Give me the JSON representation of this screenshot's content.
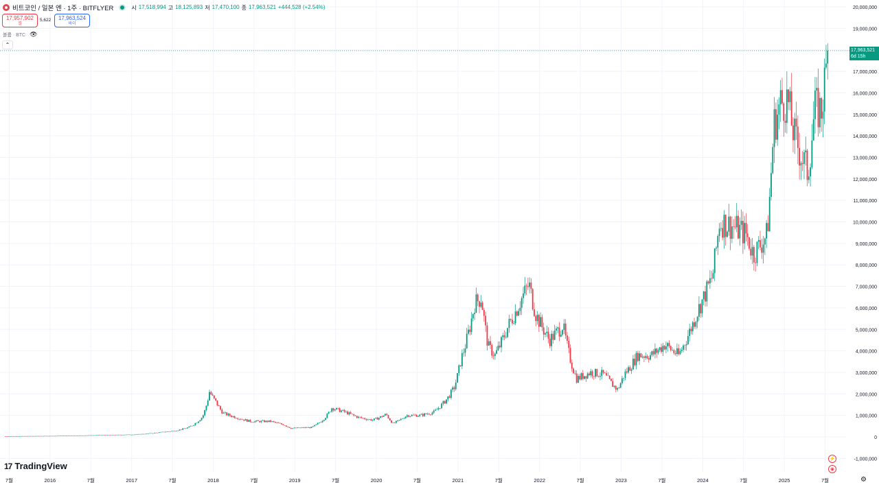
{
  "header": {
    "title": "비트코인 / 일본 엔 · 1주 · BITFLYER",
    "ohlc": [
      {
        "k": "시",
        "v": "17,518,994"
      },
      {
        "k": "고",
        "v": "18,125,893"
      },
      {
        "k": "저",
        "v": "17,470,100"
      },
      {
        "k": "종",
        "v": "17,963,521"
      },
      {
        "k": "",
        "v": "+444,528 (+2.54%)"
      }
    ]
  },
  "trade": {
    "sell_price": "17,957,902",
    "sell_label": "셀",
    "spread": "5,622",
    "buy_price": "17,963,524",
    "buy_label": "바이"
  },
  "volume_label": "볼륨 · BTC",
  "price_tag": {
    "price": "17,963,521",
    "countdown": "6d 15h"
  },
  "brand": "TradingView",
  "colors": {
    "up": "#089981",
    "down": "#f23645",
    "grid": "#f0f3fa",
    "axis_text": "#131722"
  },
  "chart_data": {
    "type": "candlestick",
    "title": "비트코인 / 일본 엔 · 1주 · BITFLYER",
    "ylim": [
      -1300000,
      20200000
    ],
    "y_ticks": [
      -1000000,
      0,
      1000000,
      2000000,
      3000000,
      4000000,
      5000000,
      6000000,
      7000000,
      8000000,
      9000000,
      10000000,
      11000000,
      12000000,
      13000000,
      14000000,
      15000000,
      16000000,
      17000000,
      18000000,
      19000000,
      20000000
    ],
    "x_ticks": [
      "7월",
      "2016",
      "7월",
      "2017",
      "7월",
      "2018",
      "7월",
      "2019",
      "7월",
      "2020",
      "7월",
      "2021",
      "7월",
      "2022",
      "7월",
      "2023",
      "7월",
      "2024",
      "7월",
      "2025",
      "7월"
    ],
    "x_range": [
      "2015-06",
      "2025-07"
    ],
    "last_price": 17963521,
    "price_path": [
      [
        "2015-06",
        30000
      ],
      [
        "2016-01",
        45000
      ],
      [
        "2016-07",
        75000
      ],
      [
        "2017-01",
        110000
      ],
      [
        "2017-05",
        220000
      ],
      [
        "2017-07",
        290000
      ],
      [
        "2017-09",
        450000
      ],
      [
        "2017-11",
        950000
      ],
      [
        "2017-12",
        2100000
      ],
      [
        "2018-01",
        1600000
      ],
      [
        "2018-02",
        1100000
      ],
      [
        "2018-04",
        900000
      ],
      [
        "2018-06",
        720000
      ],
      [
        "2018-09",
        720000
      ],
      [
        "2018-11",
        560000
      ],
      [
        "2018-12",
        400000
      ],
      [
        "2019-03",
        440000
      ],
      [
        "2019-05",
        900000
      ],
      [
        "2019-06",
        1350000
      ],
      [
        "2019-08",
        1150000
      ],
      [
        "2019-10",
        900000
      ],
      [
        "2019-12",
        780000
      ],
      [
        "2020-02",
        1050000
      ],
      [
        "2020-03",
        620000
      ],
      [
        "2020-05",
        1000000
      ],
      [
        "2020-07",
        1000000
      ],
      [
        "2020-09",
        1150000
      ],
      [
        "2020-11",
        1800000
      ],
      [
        "2020-12",
        2300000
      ],
      [
        "2021-01",
        3600000
      ],
      [
        "2021-03",
        6200000
      ],
      [
        "2021-04",
        6500000
      ],
      [
        "2021-05",
        4200000
      ],
      [
        "2021-06",
        3800000
      ],
      [
        "2021-08",
        5200000
      ],
      [
        "2021-10",
        6500000
      ],
      [
        "2021-11",
        7100000
      ],
      [
        "2021-12",
        5700000
      ],
      [
        "2022-02",
        4500000
      ],
      [
        "2022-04",
        5200000
      ],
      [
        "2022-05",
        3700000
      ],
      [
        "2022-06",
        2700000
      ],
      [
        "2022-08",
        3000000
      ],
      [
        "2022-10",
        2900000
      ],
      [
        "2022-12",
        2200000
      ],
      [
        "2023-01",
        2900000
      ],
      [
        "2023-03",
        3800000
      ],
      [
        "2023-05",
        3800000
      ],
      [
        "2023-07",
        4300000
      ],
      [
        "2023-09",
        3800000
      ],
      [
        "2023-11",
        5200000
      ],
      [
        "2023-12",
        6000000
      ],
      [
        "2024-02",
        7500000
      ],
      [
        "2024-03",
        10000000
      ],
      [
        "2024-05",
        9800000
      ],
      [
        "2024-07",
        9400000
      ],
      [
        "2024-08",
        8500000
      ],
      [
        "2024-10",
        9400000
      ],
      [
        "2024-11",
        14500000
      ],
      [
        "2024-12",
        15500000
      ],
      [
        "2025-01",
        15700000
      ],
      [
        "2025-02",
        14000000
      ],
      [
        "2025-04",
        12300000
      ],
      [
        "2025-05",
        15200000
      ],
      [
        "2025-06",
        15200000
      ],
      [
        "2025-07",
        17963521
      ]
    ]
  }
}
